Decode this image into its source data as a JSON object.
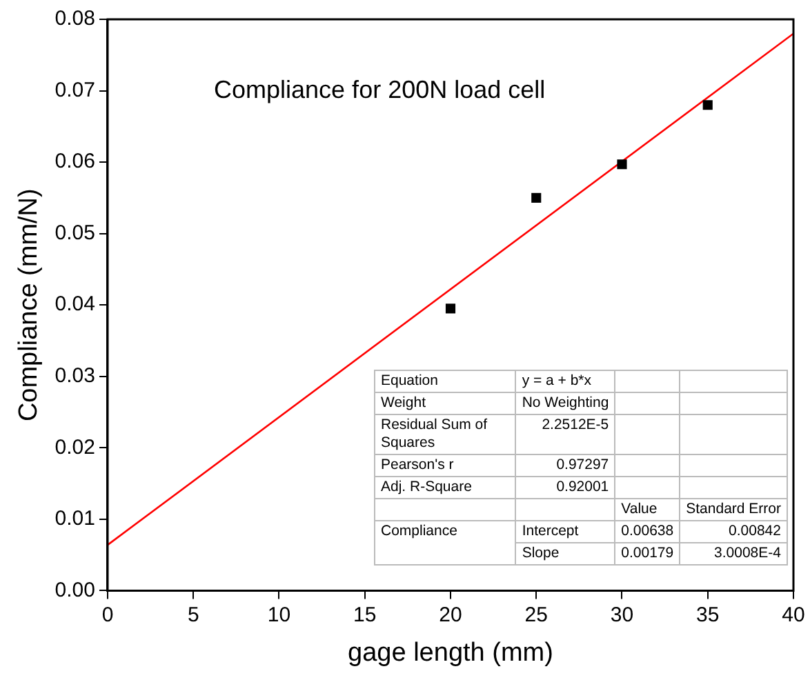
{
  "chart_data": {
    "type": "scatter",
    "title": "Compliance for 200N load cell",
    "xlabel": "gage length (mm)",
    "ylabel": "Compliance (mm/N)",
    "xlim": [
      0,
      40
    ],
    "xticks": [
      0,
      5,
      10,
      15,
      20,
      25,
      30,
      35,
      40
    ],
    "ylim": [
      0,
      0.08
    ],
    "yticks": [
      {
        "value": 0,
        "label": "0.00"
      },
      {
        "value": 0.01,
        "label": "0.01"
      },
      {
        "value": 0.02,
        "label": "0.02"
      },
      {
        "value": 0.03,
        "label": "0.03"
      },
      {
        "value": 0.04,
        "label": "0.04"
      },
      {
        "value": 0.05,
        "label": "0.05"
      },
      {
        "value": 0.06,
        "label": "0.06"
      },
      {
        "value": 0.07,
        "label": "0.07"
      },
      {
        "value": 0.08,
        "label": "0.08"
      }
    ],
    "grid": false,
    "legend": false,
    "marker": "square",
    "series": [
      {
        "type": "scatter",
        "color": "#000000",
        "x": [
          20,
          25,
          30,
          35
        ],
        "values": [
          0.0395,
          0.055,
          0.0597,
          0.068
        ]
      },
      {
        "type": "line",
        "color": "#ff0000",
        "marker": "none",
        "x": [
          0,
          40
        ],
        "values": [
          0.0064,
          0.078
        ]
      }
    ],
    "annotations": [
      "Equation",
      "y = a + b*x",
      "Weight",
      "No Weighting",
      "Residual Sum of Squares",
      "2.2512E-5",
      "Pearson's r",
      "0.97297",
      "Adj. R-Square",
      "0.92001",
      "Value",
      "Standard Error",
      "Compliance",
      "Intercept",
      "0.00638",
      "0.00842",
      "Slope",
      "0.00179",
      "3.0008E-4"
    ]
  }
}
